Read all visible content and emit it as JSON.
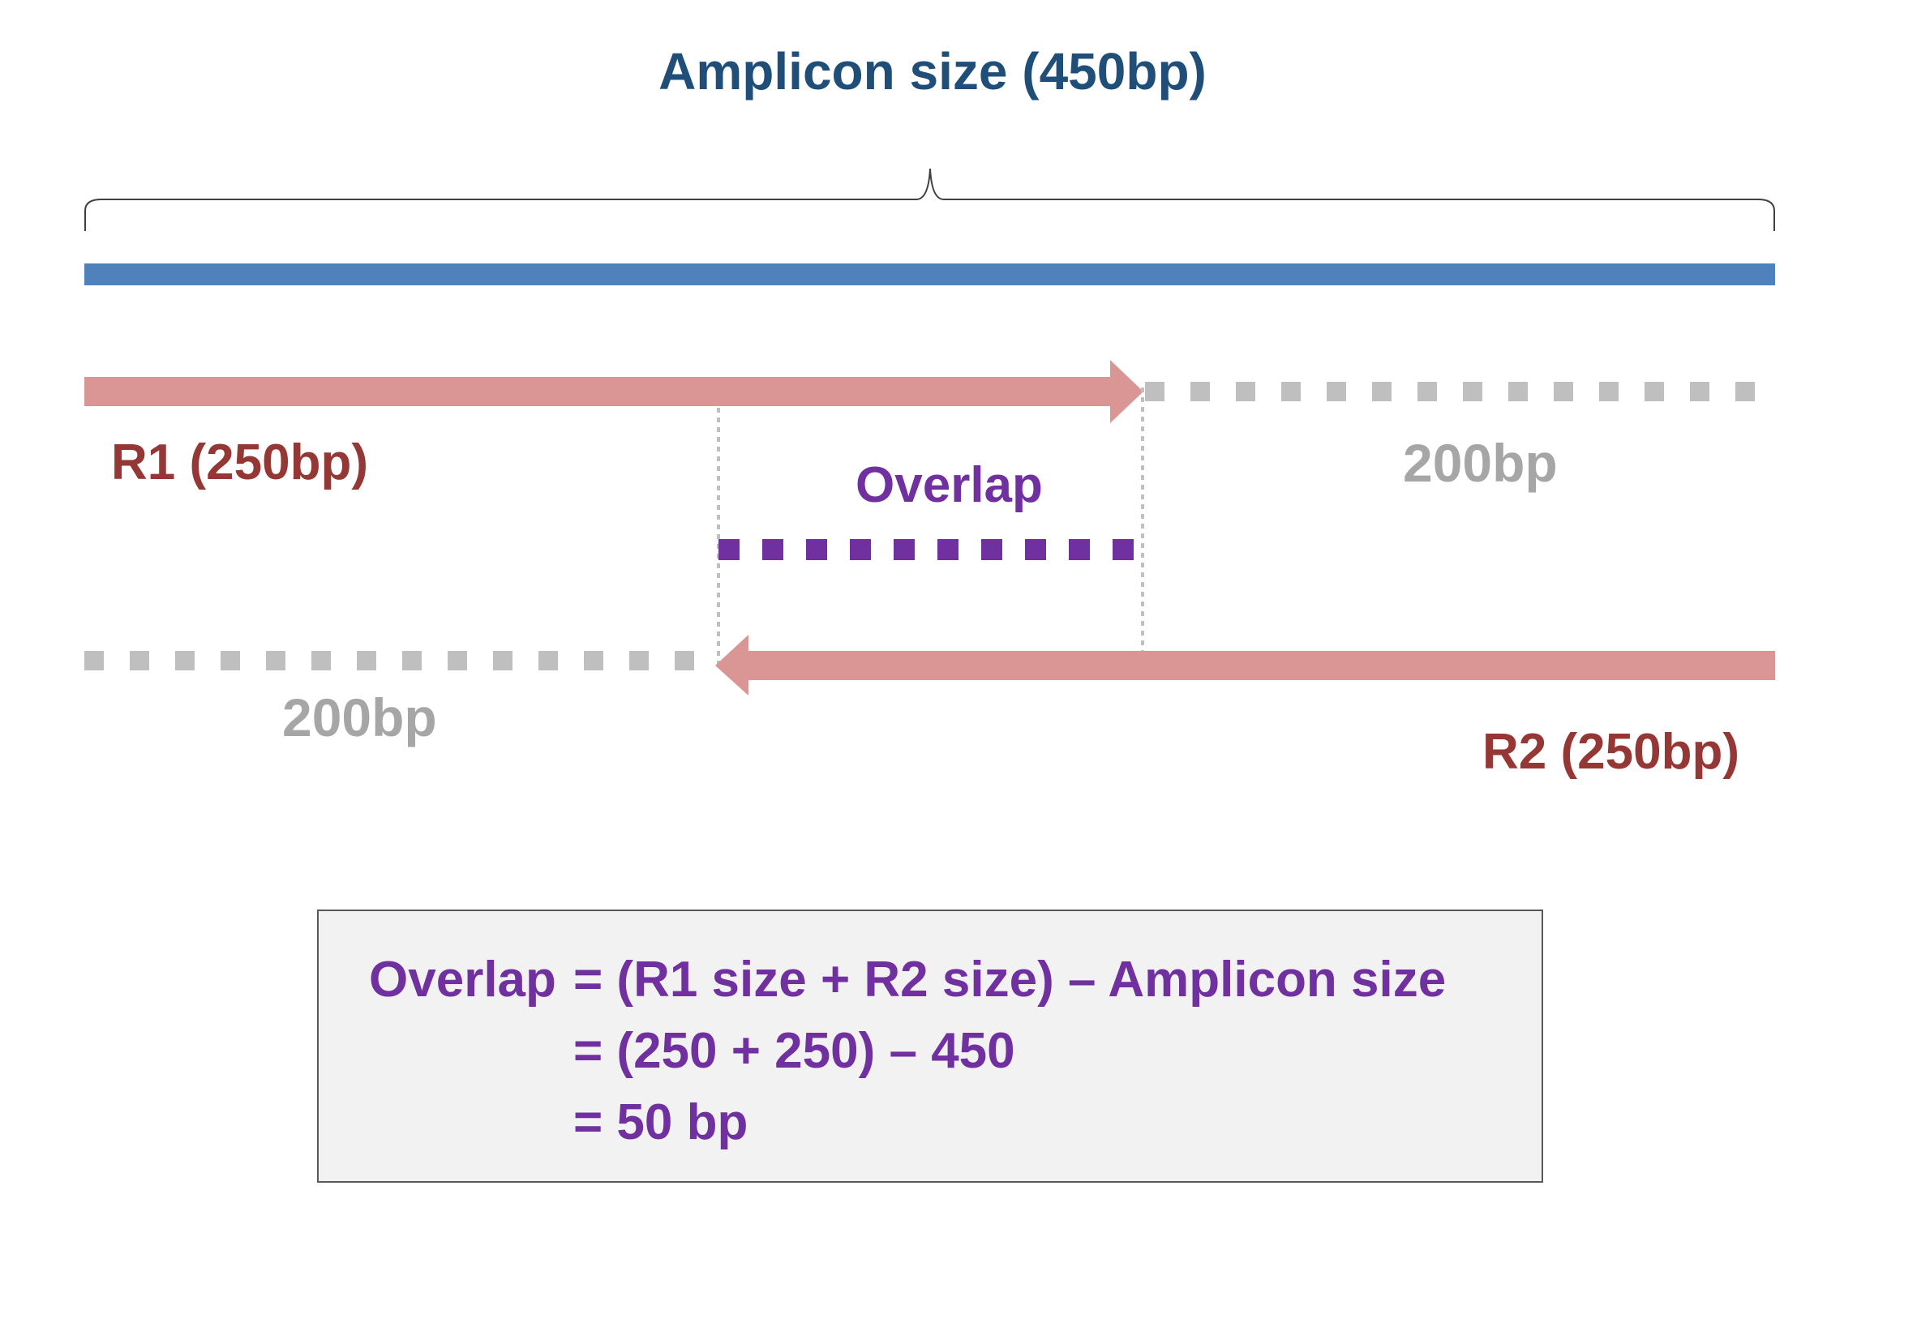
{
  "title": "Amplicon size (450bp)",
  "r1_label": "R1 (250bp)",
  "r2_label": "R2 (250bp)",
  "r1_gap_label": "200bp",
  "r2_gap_label": "200bp",
  "overlap_label": "Overlap",
  "formula": {
    "label": "Overlap",
    "line1": "= (R1 size + R2 size) – Amplicon size",
    "line2": "= (250 + 250) – 450",
    "line3": "= 50 bp"
  },
  "colors": {
    "title": "#1f4e79",
    "amplicon": "#4f81bd",
    "read": "#da9694",
    "read_label": "#953735",
    "gap": "#bfbfbf",
    "gap_label": "#a6a6a6",
    "overlap": "#7030a0"
  }
}
